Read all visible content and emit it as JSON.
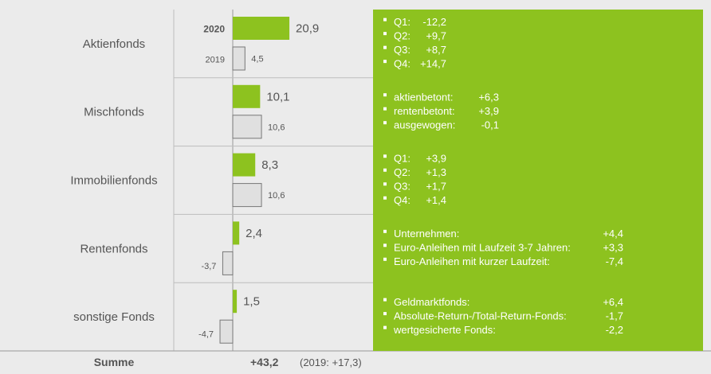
{
  "colors": {
    "green": "#8dc21f",
    "prev_fill": "#e0e0e0",
    "prev_stroke": "#777777",
    "text": "#555555"
  },
  "chart_data": {
    "type": "bar",
    "orientation": "horizontal",
    "year_labels": {
      "current": "2020",
      "previous": "2019"
    },
    "categories": [
      "Aktienfonds",
      "Mischfonds",
      "Immobilienfonds",
      "Rentenfonds",
      "sonstige Fonds"
    ],
    "series": [
      {
        "name": "2020",
        "values": [
          20.9,
          10.1,
          8.3,
          2.4,
          1.5
        ],
        "labels": [
          "20,9",
          "10,1",
          "8,3",
          "2,4",
          "1,5"
        ]
      },
      {
        "name": "2019",
        "values": [
          4.5,
          10.6,
          10.6,
          -3.7,
          -4.7
        ],
        "labels": [
          "4,5",
          "10,6",
          "10,6",
          "-3,7",
          "-4,7"
        ]
      }
    ],
    "details": [
      [
        {
          "label": "Q1:",
          "value": "-12,2"
        },
        {
          "label": "Q2:",
          "value": "+9,7"
        },
        {
          "label": "Q3:",
          "value": "+8,7"
        },
        {
          "label": "Q4:",
          "value": "+14,7"
        }
      ],
      [
        {
          "label": "aktienbetont:",
          "value": "+6,3"
        },
        {
          "label": "rentenbetont:",
          "value": "+3,9"
        },
        {
          "label": "ausgewogen:",
          "value": "-0,1"
        }
      ],
      [
        {
          "label": "Q1:",
          "value": "+3,9"
        },
        {
          "label": "Q2:",
          "value": "+1,3"
        },
        {
          "label": "Q3:",
          "value": "+1,7"
        },
        {
          "label": "Q4:",
          "value": "+1,4"
        }
      ],
      [
        {
          "label": "Unternehmen:",
          "value": "+4,4"
        },
        {
          "label": "Euro-Anleihen mit Laufzeit 3-7 Jahren:",
          "value": "+3,3"
        },
        {
          "label": "Euro-Anleihen mit kurzer Laufzeit:",
          "value": "-7,4"
        }
      ],
      [
        {
          "label": "Geldmarktfonds:",
          "value": "+6,4"
        },
        {
          "label": "Absolute-Return-/Total-Return-Fonds:",
          "value": "-1,7"
        },
        {
          "label": "wertgesicherte Fonds:",
          "value": "-2,2"
        }
      ]
    ],
    "summary": {
      "label": "Summe",
      "total": "+43,2",
      "previous": "(2019: +17,3)"
    }
  }
}
